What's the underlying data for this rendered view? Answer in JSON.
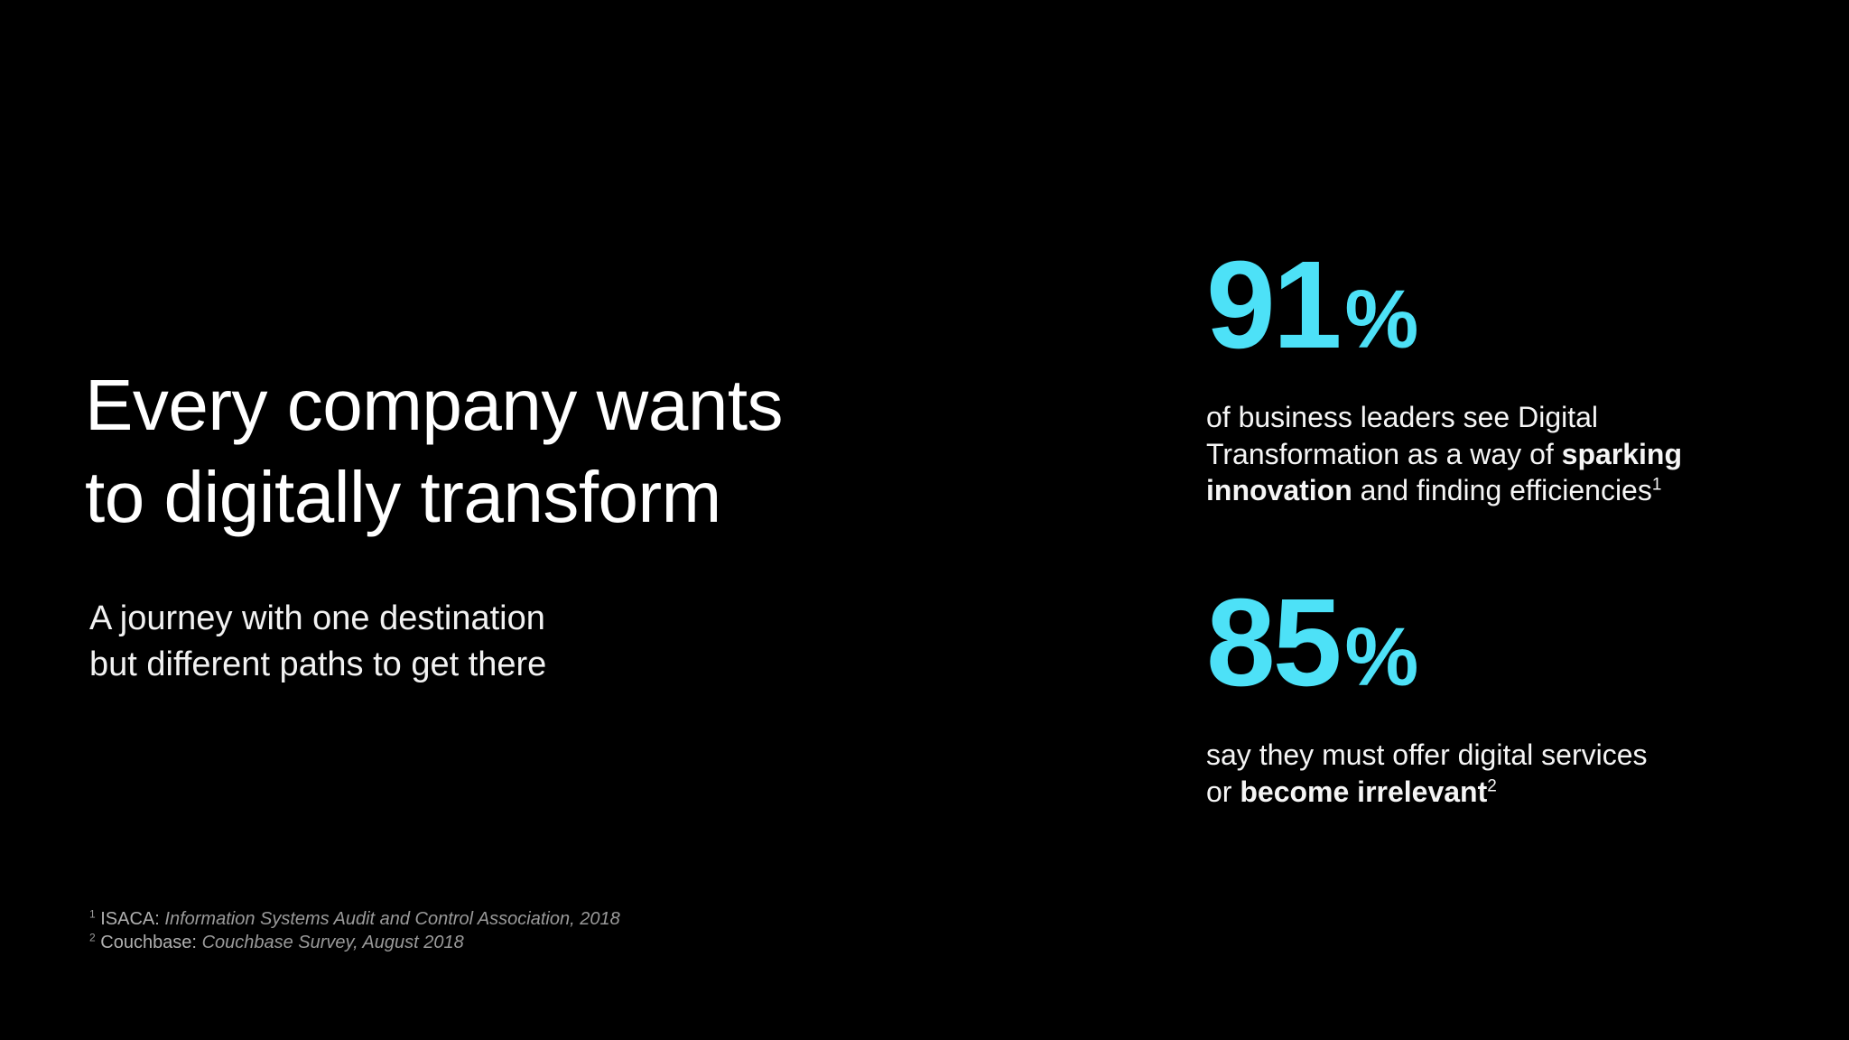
{
  "title": {
    "lines": [
      "Every company wants",
      "to digitally transform"
    ]
  },
  "subtitle": {
    "lines": [
      "A journey with one destination",
      "but different paths to get there"
    ]
  },
  "stats": [
    {
      "number": 91,
      "unit": "%",
      "lines": [
        [
          {
            "text": "of business leaders see Digital"
          }
        ],
        [
          {
            "text": "Transformation as a way of "
          },
          {
            "text": "sparking",
            "bold": true
          }
        ],
        [
          {
            "text": "innovation",
            "bold": true
          },
          {
            "text": " and finding efficiencies"
          },
          {
            "text": "1",
            "sup": true
          }
        ]
      ]
    },
    {
      "number": 85,
      "unit": "%",
      "lines": [
        [
          {
            "text": "say they must offer digital services"
          }
        ],
        [
          {
            "text": "or "
          },
          {
            "text": "become irrelevant",
            "bold": true
          },
          {
            "text": "2",
            "sup": true
          }
        ]
      ]
    }
  ],
  "footnotes": [
    {
      "marker": "1",
      "source": "ISACA:",
      "detail": "Information Systems Audit and Control Association, 2018"
    },
    {
      "marker": "2",
      "source": "Couchbase:",
      "detail": "Couchbase Survey, August 2018"
    }
  ]
}
